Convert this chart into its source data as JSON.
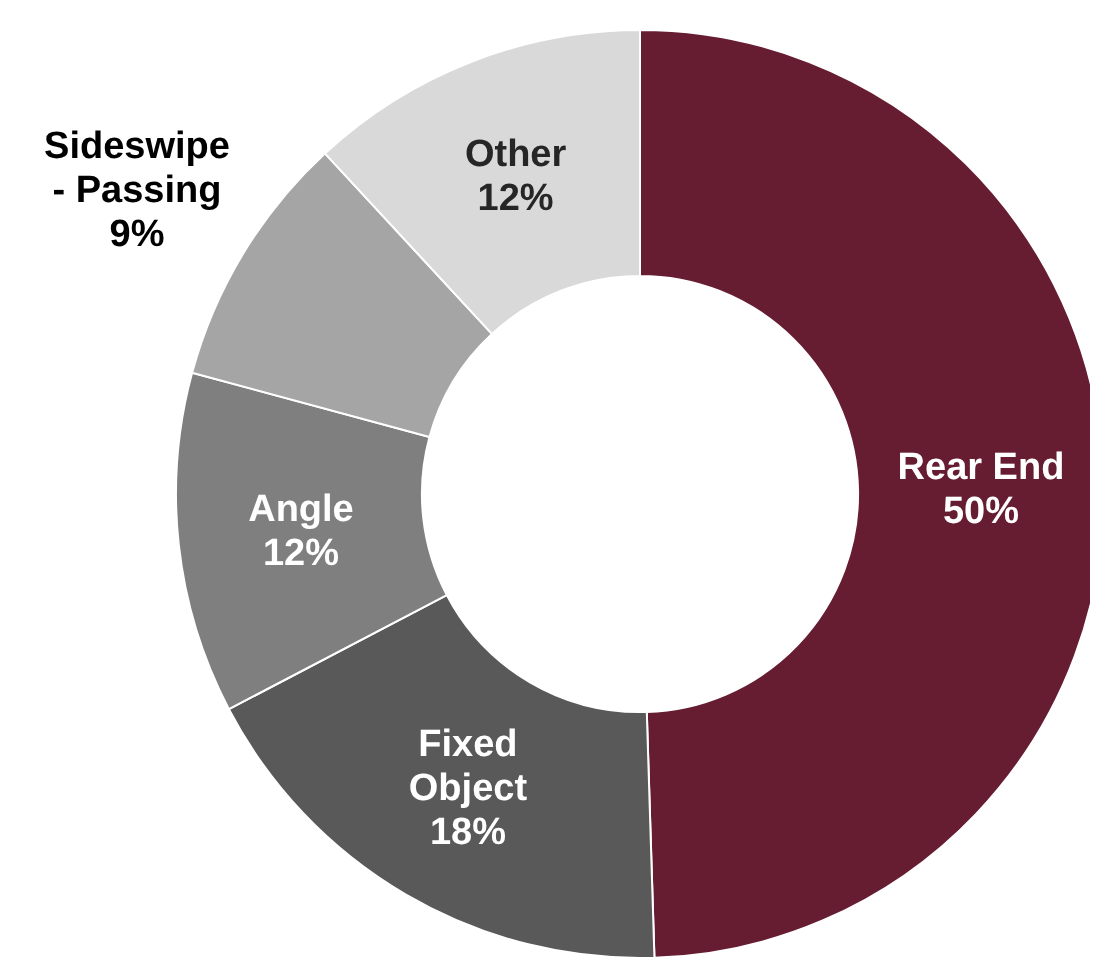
{
  "chart_data": {
    "type": "donut",
    "categories": [
      "Rear End",
      "Fixed Object",
      "Angle",
      "Sideswipe - Passing",
      "Other"
    ],
    "values": [
      50,
      18,
      12,
      9,
      12
    ],
    "value_labels": [
      "50%",
      "18%",
      "12%",
      "9%",
      "12%"
    ],
    "colors": [
      "#661c31",
      "#595959",
      "#7f7f7f",
      "#a5a5a5",
      "#d9d9d9"
    ],
    "legend": false
  }
}
